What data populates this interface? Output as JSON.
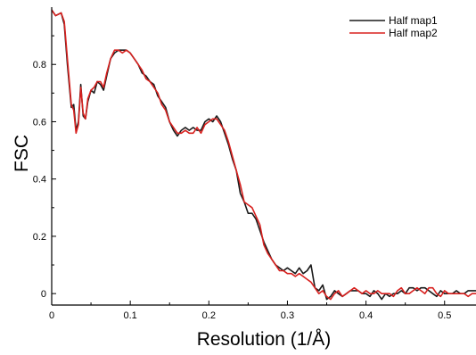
{
  "chart_data": {
    "type": "line",
    "title": "",
    "xlabel": "Resolution (1/Å)",
    "ylabel": "FSC",
    "xlim": [
      0,
      0.54
    ],
    "ylim": [
      -0.04,
      1.0
    ],
    "xticks": [
      "0",
      "0.1",
      "0.2",
      "0.3",
      "0.4",
      "0.5"
    ],
    "xtick_values": [
      0,
      0.1,
      0.2,
      0.3,
      0.4,
      0.5
    ],
    "yticks": [
      "0",
      "0.2",
      "0.4",
      "0.6",
      "0.8"
    ],
    "ytick_values": [
      0,
      0.2,
      0.4,
      0.6,
      0.8
    ],
    "grid": false,
    "legend_position": "top-right",
    "series": [
      {
        "name": "Half map1",
        "color": "#1a1a1a",
        "x": [
          0,
          0.005,
          0.012,
          0.016,
          0.02,
          0.025,
          0.028,
          0.031,
          0.034,
          0.037,
          0.04,
          0.043,
          0.046,
          0.05,
          0.054,
          0.058,
          0.062,
          0.066,
          0.07,
          0.075,
          0.08,
          0.085,
          0.09,
          0.095,
          0.1,
          0.105,
          0.11,
          0.115,
          0.12,
          0.125,
          0.13,
          0.135,
          0.14,
          0.145,
          0.15,
          0.155,
          0.16,
          0.165,
          0.17,
          0.175,
          0.18,
          0.185,
          0.19,
          0.195,
          0.2,
          0.205,
          0.21,
          0.215,
          0.22,
          0.225,
          0.23,
          0.235,
          0.24,
          0.245,
          0.25,
          0.255,
          0.26,
          0.265,
          0.27,
          0.275,
          0.28,
          0.285,
          0.29,
          0.295,
          0.3,
          0.305,
          0.31,
          0.315,
          0.32,
          0.325,
          0.33,
          0.335,
          0.34,
          0.345,
          0.35,
          0.355,
          0.36,
          0.365,
          0.37,
          0.375,
          0.38,
          0.385,
          0.39,
          0.395,
          0.4,
          0.405,
          0.41,
          0.415,
          0.42,
          0.425,
          0.43,
          0.435,
          0.44,
          0.445,
          0.45,
          0.455,
          0.46,
          0.465,
          0.47,
          0.475,
          0.48,
          0.485,
          0.49,
          0.495,
          0.5,
          0.505,
          0.51,
          0.515,
          0.52,
          0.525,
          0.53,
          0.535,
          0.54
        ],
        "values": [
          0.99,
          0.97,
          0.98,
          0.94,
          0.8,
          0.65,
          0.66,
          0.57,
          0.6,
          0.73,
          0.62,
          0.61,
          0.67,
          0.71,
          0.7,
          0.74,
          0.73,
          0.71,
          0.76,
          0.82,
          0.84,
          0.85,
          0.85,
          0.85,
          0.84,
          0.82,
          0.8,
          0.77,
          0.76,
          0.74,
          0.73,
          0.69,
          0.67,
          0.65,
          0.6,
          0.57,
          0.55,
          0.57,
          0.58,
          0.57,
          0.58,
          0.57,
          0.57,
          0.6,
          0.61,
          0.6,
          0.62,
          0.6,
          0.56,
          0.52,
          0.47,
          0.43,
          0.35,
          0.32,
          0.28,
          0.28,
          0.26,
          0.22,
          0.18,
          0.15,
          0.12,
          0.1,
          0.09,
          0.08,
          0.09,
          0.08,
          0.07,
          0.09,
          0.07,
          0.08,
          0.1,
          0.02,
          0.01,
          0.03,
          -0.02,
          -0.01,
          0.01,
          0.0,
          -0.01,
          0.0,
          0.01,
          0.01,
          0.01,
          0.0,
          0.0,
          -0.01,
          0.01,
          0.0,
          -0.02,
          0.0,
          -0.01,
          0.0,
          0.0,
          0.01,
          0.0,
          0.02,
          0.02,
          0.01,
          0.02,
          0.02,
          0.01,
          0.0,
          -0.01,
          0.01,
          0.0,
          0.0,
          0.0,
          0.01,
          0.0,
          0.0,
          0.01,
          0.01,
          0.01
        ]
      },
      {
        "name": "Half map2",
        "color": "#d8201e",
        "x": [
          0,
          0.005,
          0.012,
          0.016,
          0.02,
          0.025,
          0.028,
          0.031,
          0.034,
          0.037,
          0.04,
          0.043,
          0.046,
          0.05,
          0.054,
          0.058,
          0.062,
          0.066,
          0.07,
          0.075,
          0.08,
          0.085,
          0.09,
          0.095,
          0.1,
          0.105,
          0.11,
          0.115,
          0.12,
          0.125,
          0.13,
          0.135,
          0.14,
          0.145,
          0.15,
          0.155,
          0.16,
          0.165,
          0.17,
          0.175,
          0.18,
          0.185,
          0.19,
          0.195,
          0.2,
          0.205,
          0.21,
          0.215,
          0.22,
          0.225,
          0.23,
          0.235,
          0.24,
          0.245,
          0.25,
          0.255,
          0.26,
          0.265,
          0.27,
          0.275,
          0.28,
          0.285,
          0.29,
          0.295,
          0.3,
          0.305,
          0.31,
          0.315,
          0.32,
          0.325,
          0.33,
          0.335,
          0.34,
          0.345,
          0.35,
          0.355,
          0.36,
          0.365,
          0.37,
          0.375,
          0.38,
          0.385,
          0.39,
          0.395,
          0.4,
          0.405,
          0.41,
          0.415,
          0.42,
          0.425,
          0.43,
          0.435,
          0.44,
          0.445,
          0.45,
          0.455,
          0.46,
          0.465,
          0.47,
          0.475,
          0.48,
          0.485,
          0.49,
          0.495,
          0.5,
          0.505,
          0.51,
          0.515,
          0.52,
          0.525,
          0.53,
          0.535,
          0.54
        ],
        "values": [
          0.99,
          0.97,
          0.98,
          0.95,
          0.82,
          0.66,
          0.64,
          0.56,
          0.59,
          0.72,
          0.63,
          0.61,
          0.68,
          0.71,
          0.72,
          0.74,
          0.74,
          0.72,
          0.77,
          0.82,
          0.85,
          0.85,
          0.84,
          0.85,
          0.84,
          0.82,
          0.8,
          0.78,
          0.75,
          0.74,
          0.72,
          0.7,
          0.66,
          0.64,
          0.6,
          0.58,
          0.56,
          0.56,
          0.57,
          0.56,
          0.56,
          0.58,
          0.56,
          0.59,
          0.6,
          0.61,
          0.61,
          0.59,
          0.57,
          0.53,
          0.48,
          0.43,
          0.38,
          0.32,
          0.31,
          0.3,
          0.27,
          0.24,
          0.17,
          0.14,
          0.12,
          0.1,
          0.08,
          0.08,
          0.07,
          0.07,
          0.06,
          0.07,
          0.06,
          0.05,
          0.04,
          0.02,
          0.0,
          0.01,
          -0.01,
          -0.02,
          0.0,
          0.01,
          -0.01,
          0.0,
          0.01,
          0.02,
          0.01,
          0.0,
          0.01,
          0.0,
          0.0,
          0.01,
          0.0,
          0.0,
          0.0,
          -0.01,
          0.01,
          0.02,
          0.0,
          0.0,
          0.01,
          0.02,
          0.01,
          0.0,
          0.02,
          0.02,
          0.0,
          -0.01,
          0.01,
          0.0,
          0.0,
          0.0,
          0.0,
          0.0,
          -0.01,
          0.0,
          0.0
        ]
      }
    ]
  }
}
